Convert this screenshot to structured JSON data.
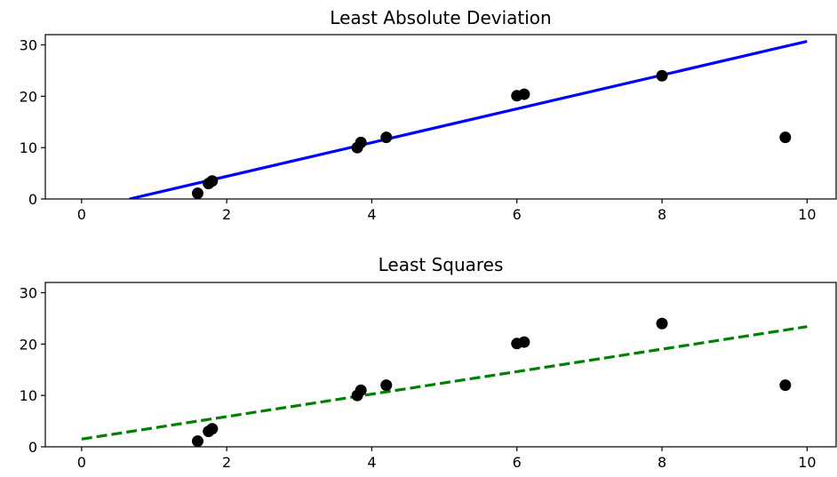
{
  "chart_data": [
    {
      "type": "scatter",
      "title": "Least Absolute Deviation",
      "xlabel": "",
      "ylabel": "",
      "xlim": [
        -0.5,
        10.4
      ],
      "ylim": [
        0,
        32
      ],
      "xticks": [
        0,
        2,
        4,
        6,
        8,
        10
      ],
      "yticks": [
        0,
        10,
        20,
        30
      ],
      "grid": false,
      "points": {
        "x": [
          1.6,
          1.75,
          1.8,
          3.8,
          3.85,
          4.2,
          6.0,
          6.1,
          8.0,
          9.7
        ],
        "y": [
          1.1,
          3.0,
          3.5,
          10.0,
          11.0,
          12.0,
          20.1,
          20.4,
          24.0,
          12.0
        ],
        "color": "#000000"
      },
      "fit_line": {
        "x": [
          0.66,
          10
        ],
        "y": [
          0,
          30.7
        ],
        "color": "#0000ff",
        "style": "solid"
      }
    },
    {
      "type": "scatter",
      "title": "Least Squares",
      "xlabel": "",
      "ylabel": "",
      "xlim": [
        -0.5,
        10.4
      ],
      "ylim": [
        0,
        32
      ],
      "xticks": [
        0,
        2,
        4,
        6,
        8,
        10
      ],
      "yticks": [
        0,
        10,
        20,
        30
      ],
      "grid": false,
      "points": {
        "x": [
          1.6,
          1.75,
          1.8,
          3.8,
          3.85,
          4.2,
          6.0,
          6.1,
          8.0,
          9.7
        ],
        "y": [
          1.1,
          3.0,
          3.5,
          10.0,
          11.0,
          12.0,
          20.1,
          20.4,
          24.0,
          12.0
        ],
        "color": "#000000"
      },
      "fit_line": {
        "x": [
          0,
          10
        ],
        "y": [
          1.5,
          23.4
        ],
        "color": "#008000",
        "style": "dashed"
      }
    }
  ]
}
